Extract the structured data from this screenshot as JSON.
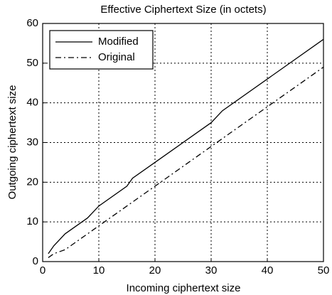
{
  "chart_data": {
    "type": "line",
    "title": "Effective Ciphertext Size (in octets)",
    "xlabel": "Incoming ciphertext size",
    "ylabel": "Outgoing ciphertext size",
    "x": [
      1,
      2,
      4,
      8,
      10,
      15,
      16,
      20,
      30,
      32,
      40,
      50
    ],
    "series": [
      {
        "name": "Modified",
        "color": "#000000",
        "style": "solid",
        "values": [
          2,
          4,
          7,
          11,
          14,
          19,
          21,
          25,
          35,
          38,
          46,
          56
        ]
      },
      {
        "name": "Original",
        "color": "#000000",
        "style": "dashdot",
        "values": [
          1,
          2,
          3,
          7,
          9,
          14,
          15,
          19,
          29,
          31,
          39,
          49
        ]
      }
    ],
    "xlim": [
      0,
      50
    ],
    "xticks": [
      0,
      10,
      20,
      30,
      40,
      50
    ],
    "ylim": [
      0,
      60
    ],
    "yticks": [
      0,
      10,
      20,
      30,
      40,
      50,
      60
    ],
    "grid": true,
    "legend": "upper left"
  }
}
